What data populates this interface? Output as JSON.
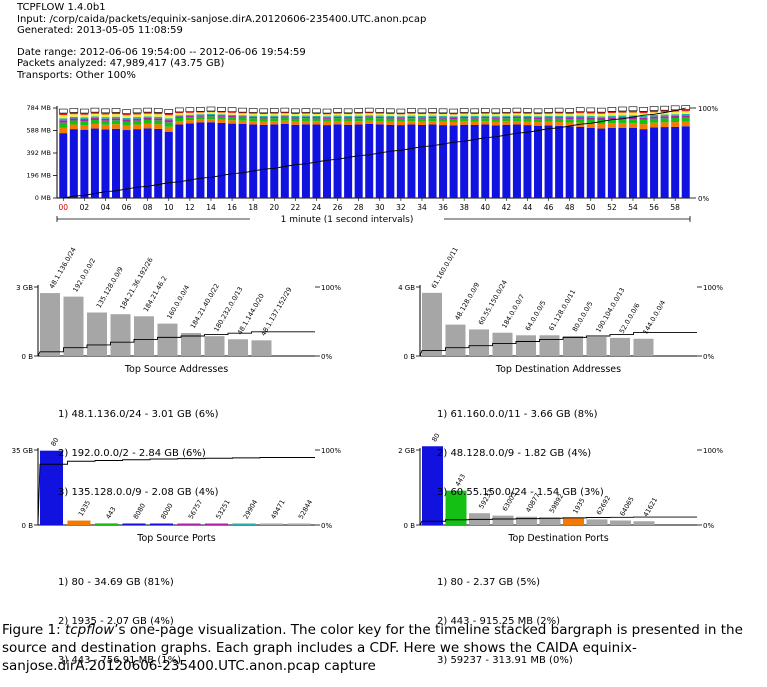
{
  "header": {
    "title": "TCPFLOW 1.4.0b1",
    "input": "Input: /corp/caida/packets/equinix-sanjose.dirA.20120606-235400.UTC.anon.pcap",
    "generated": "Generated: 2013-05-05 11:08:59",
    "date_range": "Date range: 2012-06-06 19:54:00 -- 2012-06-06 19:54:59",
    "packets": "Packets analyzed: 47,989,417 (43.75 GB)",
    "transports": "Transports: Other 100%"
  },
  "colors": {
    "blue": "#1212e0",
    "orange": "#f57a00",
    "green": "#15c015",
    "purple": "#b020b0",
    "teal": "#20b0b0",
    "yellow": "#f0f040",
    "red": "#e02020",
    "gray": "#a6a6a6",
    "highlight": "#e00000"
  },
  "chart_data": [
    {
      "type": "bar",
      "title": "",
      "xlabel": "1 minute (1 second intervals)",
      "ylabel": "",
      "y_ticks": [
        "0 MB",
        "196 MB",
        "392 MB",
        "588 MB",
        "784 MB"
      ],
      "ylim": [
        0,
        784
      ],
      "right_ticks": [
        "0%",
        "100%"
      ],
      "x_labels": [
        "00",
        "02",
        "04",
        "06",
        "08",
        "10",
        "12",
        "14",
        "16",
        "18",
        "20",
        "22",
        "24",
        "26",
        "28",
        "30",
        "32",
        "34",
        "36",
        "38",
        "40",
        "42",
        "44",
        "46",
        "48",
        "50",
        "52",
        "54",
        "56",
        "58"
      ],
      "highlight_label": "00",
      "stacked": true,
      "series_colors": [
        "#1212e0",
        "#f57a00",
        "#15c015",
        "#b020b0",
        "#20b0b0",
        "#f0f040",
        "#e02020",
        "#ffffff"
      ],
      "totals": [
        740,
        745,
        740,
        748,
        742,
        745,
        735,
        742,
        748,
        745,
        737,
        750,
        752,
        755,
        758,
        755,
        752,
        748,
        745,
        742,
        745,
        748,
        742,
        745,
        742,
        740,
        745,
        742,
        745,
        748,
        745,
        742,
        740,
        745,
        742,
        745,
        742,
        740,
        745,
        742,
        745,
        742,
        745,
        748,
        745,
        742,
        745,
        748,
        745,
        752,
        750,
        748,
        755,
        758,
        760,
        755,
        762,
        765,
        768,
        770
      ],
      "blue": [
        565,
        600,
        595,
        605,
        598,
        603,
        592,
        600,
        606,
        602,
        575,
        640,
        650,
        658,
        660,
        655,
        648,
        645,
        640,
        638,
        640,
        645,
        638,
        642,
        640,
        635,
        642,
        638,
        640,
        645,
        642,
        638,
        635,
        640,
        636,
        640,
        635,
        632,
        638,
        636,
        640,
        632,
        638,
        640,
        635,
        630,
        632,
        628,
        624,
        620,
        612,
        605,
        610,
        612,
        610,
        600,
        615,
        618,
        620,
        625
      ],
      "cdf": [
        0.0,
        0.02,
        0.03,
        0.05,
        0.07,
        0.08,
        0.1,
        0.12,
        0.13,
        0.15,
        0.17,
        0.18,
        0.2,
        0.22,
        0.23,
        0.25,
        0.27,
        0.28,
        0.3,
        0.32,
        0.33,
        0.35,
        0.37,
        0.38,
        0.4,
        0.42,
        0.43,
        0.45,
        0.47,
        0.48,
        0.5,
        0.52,
        0.53,
        0.55,
        0.57,
        0.58,
        0.6,
        0.62,
        0.63,
        0.65,
        0.67,
        0.68,
        0.7,
        0.72,
        0.73,
        0.75,
        0.77,
        0.78,
        0.8,
        0.82,
        0.83,
        0.85,
        0.87,
        0.88,
        0.9,
        0.92,
        0.93,
        0.95,
        0.97,
        1.0
      ]
    },
    {
      "type": "bar",
      "title": "Top Source Addresses",
      "y_ticks": [
        "0 B",
        "3 GB"
      ],
      "ylim": [
        0,
        3.3
      ],
      "right_ticks": [
        "0%",
        "100%"
      ],
      "categories": [
        "48.1.136.0/24",
        "192.0.0.0/2",
        "135.128.0.0/9",
        "184.21.36.192/26",
        "184.21.46.2",
        "160.0.0.0/4",
        "184.21.40.0/22",
        "180.232.0.0/13",
        "48.1.144.0/20",
        "48.1.137.152/29"
      ],
      "values": [
        3.01,
        2.84,
        2.08,
        2.0,
        1.9,
        1.55,
        1.1,
        0.95,
        0.8,
        0.75
      ],
      "bar_color": "#a6a6a6",
      "cdf": [
        0.06,
        0.12,
        0.16,
        0.2,
        0.24,
        0.27,
        0.29,
        0.31,
        0.33,
        0.35
      ],
      "summary": [
        "1) 48.1.136.0/24 - 3.01 GB (6%)",
        "2) 192.0.0.0/2 - 2.84 GB (6%)",
        "3) 135.128.0.0/9 - 2.08 GB (4%)"
      ]
    },
    {
      "type": "bar",
      "title": "Top Destination Addresses",
      "y_ticks": [
        "0 B",
        "4 GB"
      ],
      "ylim": [
        0,
        4.0
      ],
      "right_ticks": [
        "0%",
        "100%"
      ],
      "categories": [
        "61.160.0.0/11",
        "48.128.0.0/9",
        "60.55.150.0/24",
        "184.0.0.0/7",
        "64.0.0.0/5",
        "61.128.0.0/11",
        "80.0.0.0/5",
        "190.104.0.0/13",
        "52.0.0.0/6",
        "144.0.0.0/4"
      ],
      "values": [
        3.66,
        1.82,
        1.54,
        1.35,
        1.2,
        1.2,
        1.15,
        1.1,
        1.05,
        1.0
      ],
      "bar_color": "#a6a6a6",
      "cdf": [
        0.08,
        0.12,
        0.15,
        0.18,
        0.21,
        0.24,
        0.27,
        0.29,
        0.31,
        0.34
      ],
      "summary": [
        "1) 61.160.0.0/11 - 3.66 GB (8%)",
        "2) 48.128.0.0/9 - 1.82 GB (4%)",
        "3) 60.55.150.0/24 - 1.54 GB (3%)"
      ]
    },
    {
      "type": "bar",
      "title": "Top Source Ports",
      "y_ticks": [
        "0 B",
        "35 GB"
      ],
      "ylim": [
        0,
        35
      ],
      "right_ticks": [
        "0%",
        "100%"
      ],
      "categories": [
        "80",
        "1935",
        "443",
        "8080",
        "8000",
        "56757",
        "53251",
        "29904",
        "49471",
        "52844"
      ],
      "values": [
        34.69,
        2.07,
        0.757,
        0.5,
        0.45,
        0.4,
        0.35,
        0.3,
        0.06,
        0.05
      ],
      "colors": [
        "#1212e0",
        "#f57a00",
        "#15c015",
        "#1212e0",
        "#1212e0",
        "#b020b0",
        "#b020b0",
        "#20b0b0",
        "#a6a6a6",
        "#a6a6a6"
      ],
      "cdf": [
        0.81,
        0.85,
        0.86,
        0.87,
        0.88,
        0.885,
        0.89,
        0.895,
        0.9,
        0.9
      ],
      "summary": [
        "1) 80 - 34.69 GB (81%)",
        "2) 1935 - 2.07 GB (4%)",
        "3) 443 - 756.91 MB (1%)"
      ]
    },
    {
      "type": "bar",
      "title": "Top Destination Ports",
      "y_ticks": [
        "0 B",
        "2 GB"
      ],
      "ylim": [
        0,
        2.0
      ],
      "right_ticks": [
        "0%",
        "100%"
      ],
      "categories": [
        "80",
        "443",
        "59237",
        "63003",
        "40877",
        "59892",
        "1935",
        "62692",
        "64065",
        "41621"
      ],
      "values": [
        2.37,
        0.915,
        0.314,
        0.25,
        0.22,
        0.2,
        0.18,
        0.15,
        0.12,
        0.1
      ],
      "colors": [
        "#1212e0",
        "#15c015",
        "#a6a6a6",
        "#a6a6a6",
        "#a6a6a6",
        "#a6a6a6",
        "#f57a00",
        "#a6a6a6",
        "#a6a6a6",
        "#a6a6a6"
      ],
      "cdf": [
        0.05,
        0.07,
        0.075,
        0.08,
        0.085,
        0.09,
        0.095,
        0.1,
        0.103,
        0.106
      ],
      "summary": [
        "1) 80 - 2.37 GB (5%)",
        "2) 443 - 915.25 MB (2%)",
        "3) 59237 - 313.91 MB (0%)"
      ]
    }
  ],
  "caption": {
    "prefix": "Figure 1: ",
    "italic": "tcpflow",
    "text": "’s one-page visualization.  The color key for the timeline stacked bargraph is presented in the source and destination graphs.  Each graph includes a CDF. Here we shows the CAIDA equinix-sanjose.dirA.20120606-235400.UTC.anon.pcap capture"
  }
}
